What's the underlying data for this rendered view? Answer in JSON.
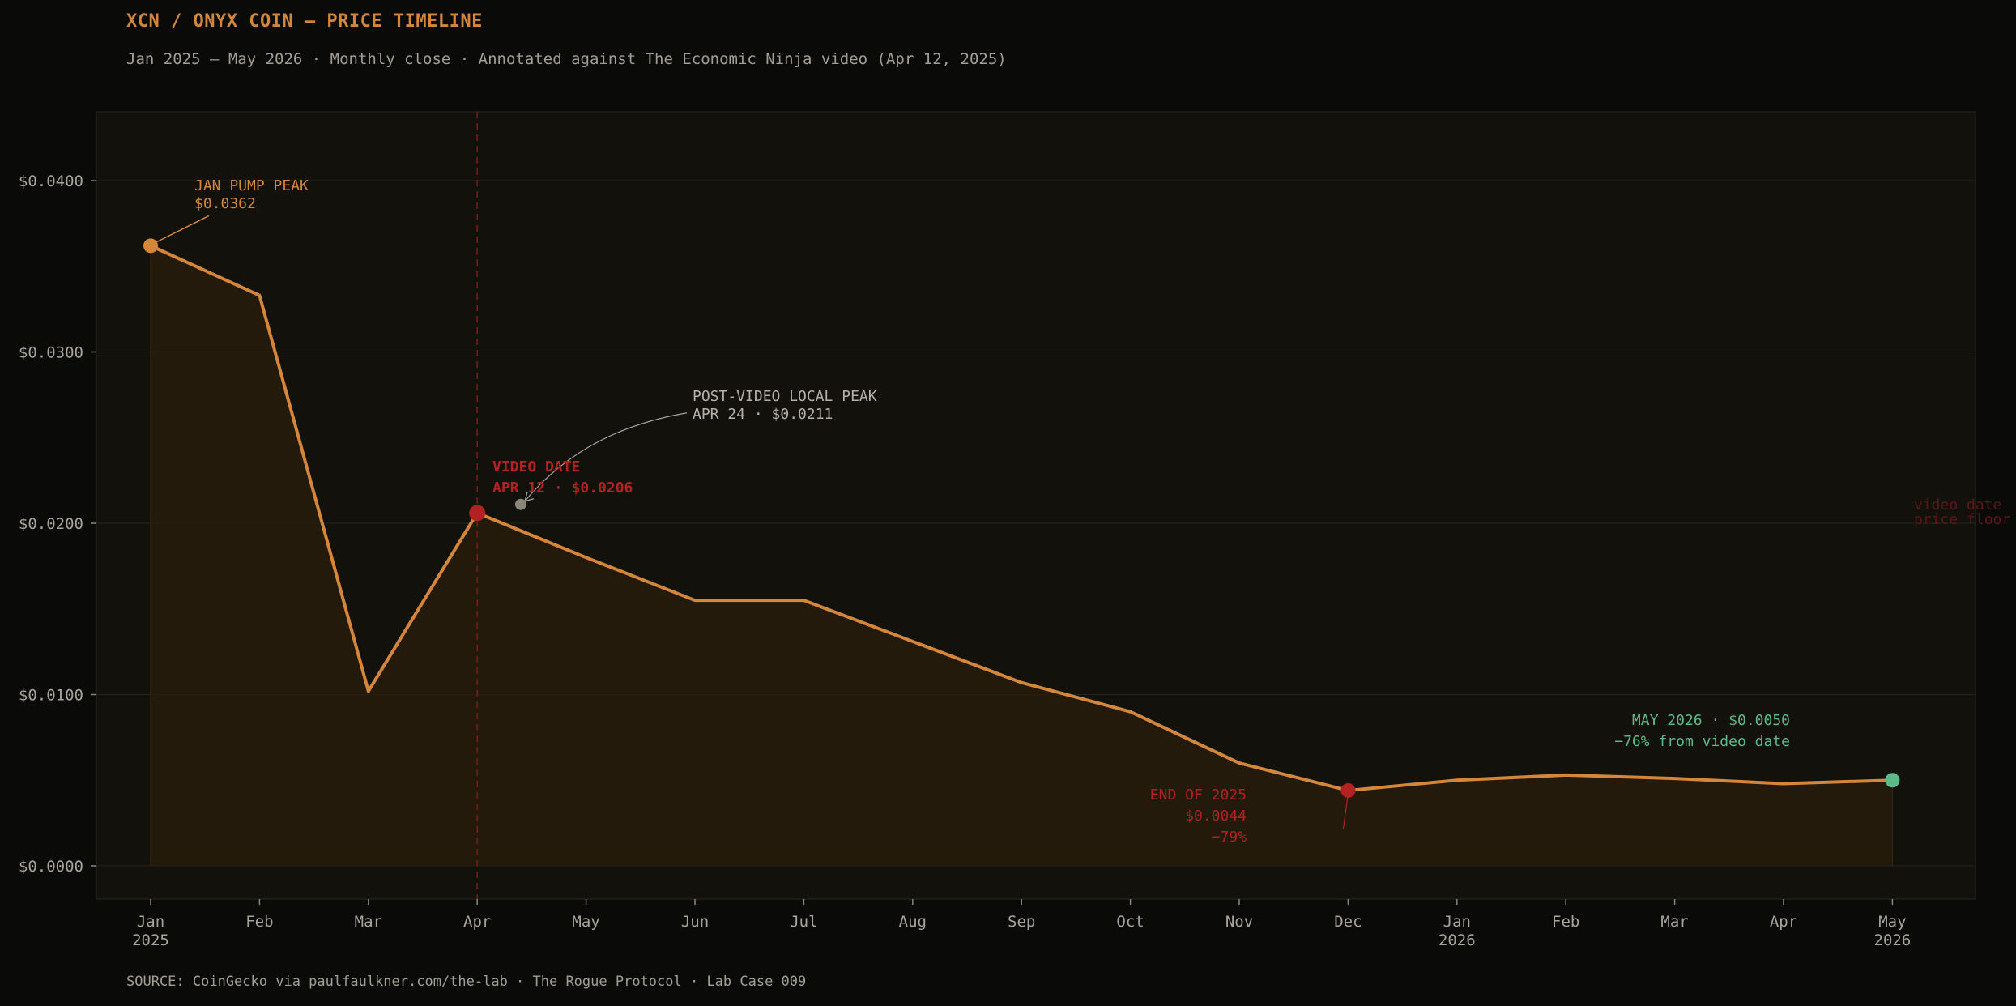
{
  "title": "XCN / ONYX COIN — PRICE TIMELINE",
  "subtitle": "Jan 2025 – May 2026 · Monthly close · Annotated against The Economic Ninja video (Apr 12, 2025)",
  "source": "SOURCE: CoinGecko via paulfaulkner.com/the-lab · The Rogue Protocol · Lab Case 009",
  "colors": {
    "background": "#0a0a09",
    "plot_background": "#12110c",
    "line": "#d4863a",
    "area_fill": "#2a1e0c",
    "red": "#b22222",
    "green": "#5cba8a",
    "gray_marker": "#8a8578",
    "text": "#a9a49a"
  },
  "chart_data": {
    "type": "line",
    "xlabel": "",
    "ylabel": "",
    "ylim": [
      -0.002,
      0.044
    ],
    "yticks": [
      0.0,
      0.01,
      0.02,
      0.03,
      0.04
    ],
    "ytick_labels": [
      "$0.0000",
      "$0.0100",
      "$0.0200",
      "$0.0300",
      "$0.0400"
    ],
    "x_tick_labels": [
      "Jan\n2025",
      "Feb",
      "Mar",
      "Apr",
      "May",
      "Jun",
      "Jul",
      "Aug",
      "Sep",
      "Oct",
      "Nov",
      "Dec",
      "Jan\n2026",
      "Feb",
      "Mar",
      "Apr",
      "May\n2026"
    ],
    "grid": true,
    "series": [
      {
        "values": [
          0.0362,
          0.0333,
          0.0102,
          0.0206,
          0.018,
          0.0155,
          0.0155,
          0.0131,
          0.0107,
          0.009,
          0.006,
          0.0044,
          0.005,
          0.0053,
          0.0051,
          0.0048,
          0.005
        ]
      }
    ],
    "video_date_index": 3,
    "video_floor_label": "video date\nprice floor",
    "markers": [
      {
        "index": 0,
        "value": 0.0362,
        "color": "orange",
        "label": "JAN PUMP PEAK\n$0.0362"
      },
      {
        "index": 3,
        "value": 0.0206,
        "color": "red",
        "label": "VIDEO DATE\nAPR 12 · $0.0206"
      },
      {
        "index": 3.4,
        "value": 0.0211,
        "color": "gray",
        "label": "POST-VIDEO LOCAL PEAK\nAPR 24 · $0.0211"
      },
      {
        "index": 11,
        "value": 0.0044,
        "color": "red",
        "label": "END OF 2025\n$0.0044\n−79%"
      },
      {
        "index": 16,
        "value": 0.005,
        "color": "green",
        "label": "MAY 2026 · $0.0050\n−76% from video date"
      }
    ]
  }
}
